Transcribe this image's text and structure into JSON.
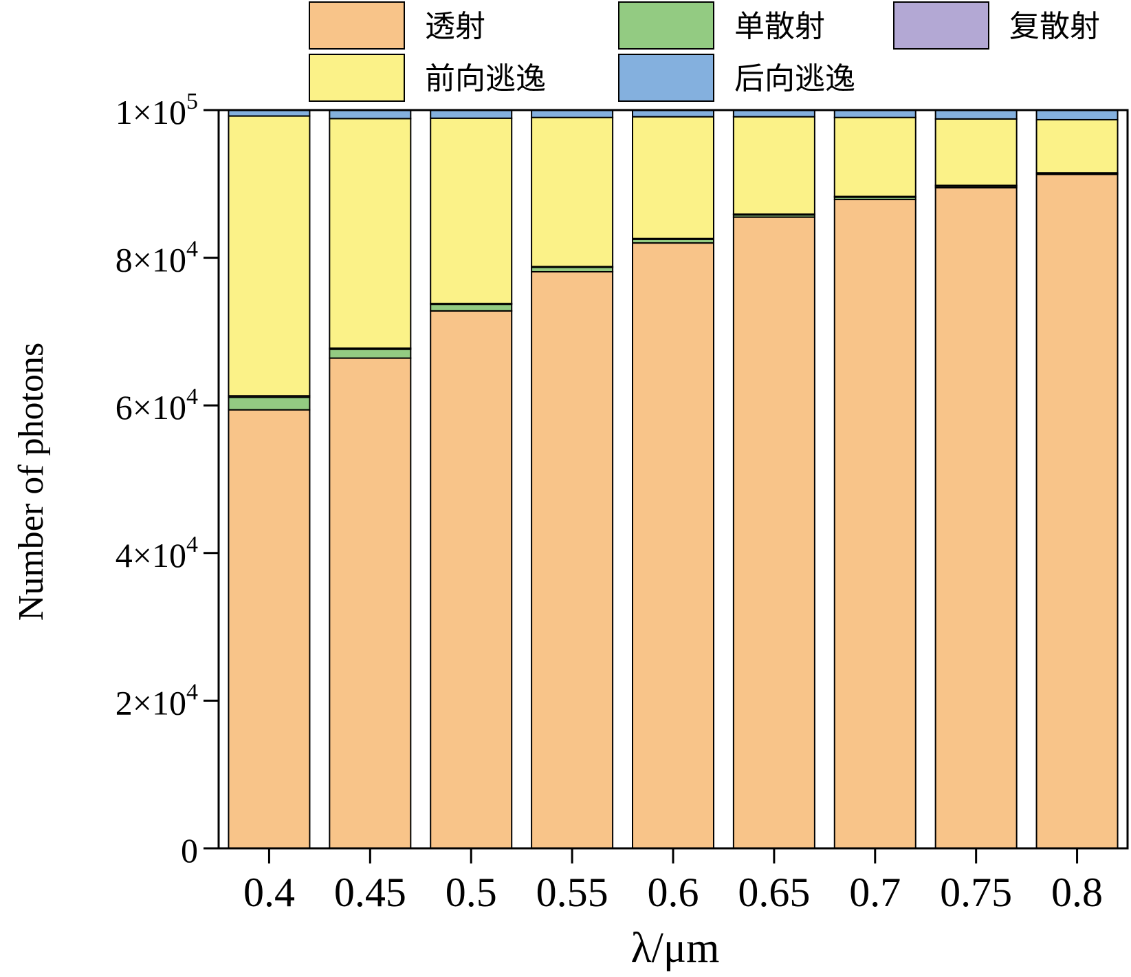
{
  "chart_data": {
    "type": "bar",
    "stacked": true,
    "title": "",
    "xlabel": "λ/μm",
    "ylabel": "Number of photons",
    "categories": [
      "0.4",
      "0.45",
      "0.5",
      "0.55",
      "0.6",
      "0.65",
      "0.7",
      "0.75",
      "0.8"
    ],
    "ylim": [
      0,
      100000
    ],
    "y_ticks": [
      {
        "value": 0,
        "mantissa": "0",
        "exp": ""
      },
      {
        "value": 20000,
        "mantissa": "2×10",
        "exp": "4"
      },
      {
        "value": 40000,
        "mantissa": "4×10",
        "exp": "4"
      },
      {
        "value": 60000,
        "mantissa": "6×10",
        "exp": "4"
      },
      {
        "value": 80000,
        "mantissa": "8×10",
        "exp": "4"
      },
      {
        "value": 100000,
        "mantissa": "1×10",
        "exp": "5"
      }
    ],
    "grid": false,
    "legend_position": "top",
    "series": [
      {
        "name": "透射",
        "color": "#F8C489",
        "values": [
          59400,
          66400,
          72800,
          78100,
          82000,
          85500,
          87900,
          89500,
          91300
        ]
      },
      {
        "name": "单散射",
        "color": "#93CB82",
        "values": [
          1700,
          1200,
          900,
          600,
          500,
          300,
          300,
          200,
          100
        ]
      },
      {
        "name": "复散射",
        "color": "#B3A8D4",
        "values": [
          200,
          150,
          100,
          100,
          100,
          100,
          100,
          100,
          100
        ]
      },
      {
        "name": "前向逃逸",
        "color": "#FBF288",
        "values": [
          37900,
          31100,
          25100,
          20200,
          16500,
          13200,
          10700,
          9000,
          7200
        ]
      },
      {
        "name": "后向逃逸",
        "color": "#84B0DE",
        "values": [
          800,
          1150,
          1100,
          1000,
          900,
          900,
          1000,
          1200,
          1300
        ]
      }
    ]
  }
}
